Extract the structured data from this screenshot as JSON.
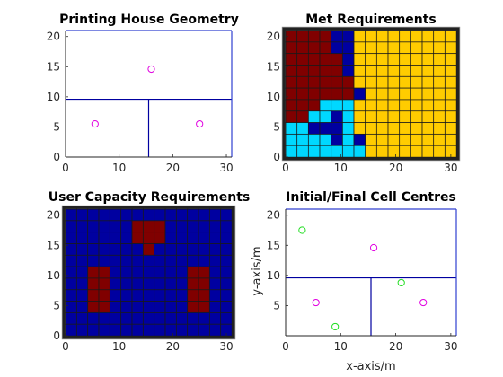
{
  "colors": {
    "blue": "#0000a0",
    "darkred": "#800000",
    "cyan": "#00d8ff",
    "gold": "#ffcc00",
    "grid": "#1a1a1a",
    "magenta": "#e000e0",
    "green": "#22dd22",
    "line": "#0000a0",
    "frame_dark": "#222222",
    "axes_blue": "#3040d0"
  },
  "chart_data": [
    {
      "type": "scatter",
      "title": "Printing House Geometry",
      "xlabel": "",
      "ylabel": "",
      "xlim": [
        0,
        31
      ],
      "ylim": [
        0,
        21
      ],
      "xticks": [
        0,
        10,
        20,
        30
      ],
      "yticks": [
        0,
        5,
        10,
        15,
        20
      ],
      "points": [
        {
          "x": 5.5,
          "y": 5.5
        },
        {
          "x": 25.0,
          "y": 5.5
        },
        {
          "x": 16.0,
          "y": 14.6
        }
      ],
      "lines": [
        {
          "x1": 0,
          "y1": 9.6,
          "x2": 31,
          "y2": 9.6
        },
        {
          "x1": 15.5,
          "y1": 0,
          "x2": 15.5,
          "y2": 9.6
        }
      ]
    },
    {
      "type": "heatmap",
      "title": "Met Requirements",
      "xlim": [
        0,
        31
      ],
      "ylim": [
        0,
        21
      ],
      "xticks": [
        0,
        10,
        20,
        30
      ],
      "yticks": [
        0,
        5,
        10,
        15,
        20
      ],
      "cols": 15,
      "rows": 11,
      "legend": {
        "D": "darkred",
        "B": "blue",
        "C": "cyan",
        "Y": "gold"
      },
      "grid_rows": [
        "DDDDBBYYYYYYYYY",
        "DDDDBBYYYYYYYYY",
        "DDDDDBYYYYYYYYY",
        "DDDDDBYYYYYYYYY",
        "DDDDDDYYYYYYYYY",
        "DDDDDDBYYYYYYYY",
        "DDDCCCYYYYYYYYY",
        "DDCCBCYYYYYYYYY",
        "CCBBBCYYYYYYYYY",
        "CCCCBCBYYYYYYYY",
        "CCCCCCCYYYYYYYY"
      ]
    },
    {
      "type": "heatmap",
      "title": "User Capacity Requirements",
      "xlim": [
        0,
        31
      ],
      "ylim": [
        0,
        21
      ],
      "xticks": [
        0,
        10,
        20,
        30
      ],
      "yticks": [
        0,
        5,
        10,
        15,
        20
      ],
      "cols": 15,
      "rows": 11,
      "legend": {
        "B": "blue",
        "D": "darkred"
      },
      "grid_rows": [
        "BBBBBBBBBBBBBBB",
        "BBBBBBDDDBBBBBB",
        "BBBBBBDDDBBBBBB",
        "BBBBBBBDBBBBBBB",
        "BBBBBBBBBBBBBBB",
        "BBDDBBBBBBBDDBB",
        "BBDDBBBBBBBDDBB",
        "BBDDBBBBBBBDDBB",
        "BBDDBBBBBBBDDBB",
        "BBBBBBBBBBBBBBB",
        "BBBBBBBBBBBBBBB"
      ]
    },
    {
      "type": "scatter",
      "title": "Initial/Final Cell Centres",
      "xlabel": "x-axis/m",
      "ylabel": "y-axis/m",
      "xlim": [
        0,
        31
      ],
      "ylim": [
        0,
        21
      ],
      "xticks": [
        0,
        10,
        20,
        30
      ],
      "yticks": [
        5,
        10,
        15,
        20
      ],
      "series": [
        {
          "color": "magenta",
          "points": [
            {
              "x": 5.5,
              "y": 5.5
            },
            {
              "x": 16.0,
              "y": 14.6
            },
            {
              "x": 25.0,
              "y": 5.5
            }
          ]
        },
        {
          "color": "green",
          "points": [
            {
              "x": 3.0,
              "y": 17.5
            },
            {
              "x": 9.0,
              "y": 1.5
            },
            {
              "x": 21.0,
              "y": 8.8
            }
          ]
        }
      ],
      "lines": [
        {
          "x1": 0,
          "y1": 9.6,
          "x2": 31,
          "y2": 9.6
        },
        {
          "x1": 15.5,
          "y1": 0,
          "x2": 15.5,
          "y2": 9.6
        }
      ]
    }
  ]
}
